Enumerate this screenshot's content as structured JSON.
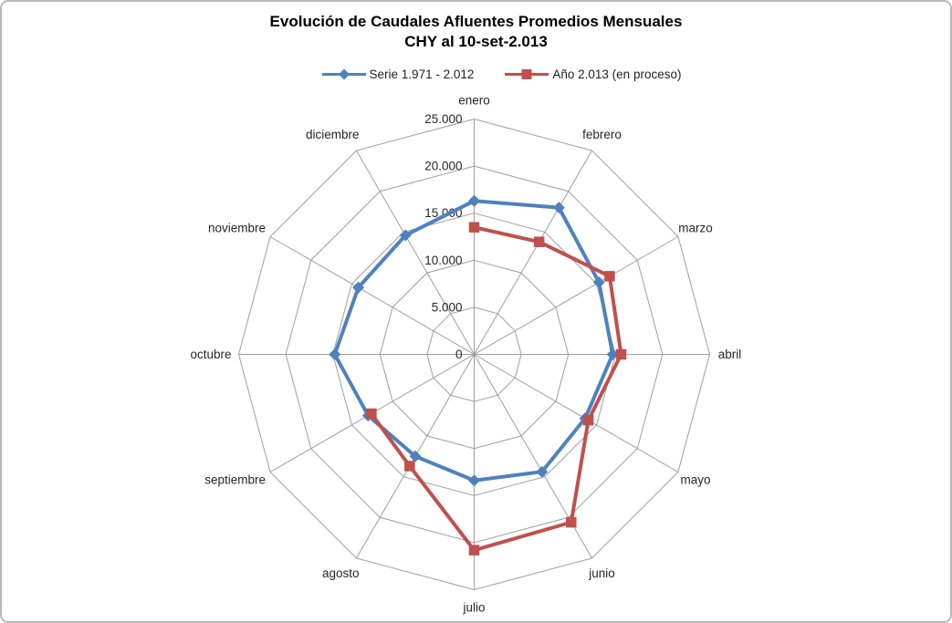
{
  "window": {
    "background": "#ffffff",
    "border_color": "#b9b9b9"
  },
  "title": {
    "line1": "Evolución de Caudales Afluentes Promedios Mensuales",
    "line2": "CHY al 10-set-2.013"
  },
  "legend": {
    "items": [
      {
        "label": "Serie 1.971 - 2.012",
        "color": "#4f81bd",
        "marker": "diamond"
      },
      {
        "label": "Año 2.013 (en proceso)",
        "color": "#c0504d",
        "marker": "square"
      }
    ]
  },
  "chart_data": {
    "type": "radar",
    "title": "Evolución de Caudales Afluentes Promedios Mensuales CHY al 10-set-2.013",
    "legend_position": "top",
    "grid": true,
    "grid_color": "#9e9e9e",
    "categories": [
      "enero",
      "febrero",
      "marzo",
      "abril",
      "mayo",
      "junio",
      "julio",
      "agosto",
      "septiembre",
      "octubre",
      "noviembre",
      "diciembre"
    ],
    "radial_axis": {
      "min": 0,
      "max": 25000,
      "step": 5000,
      "tick_labels": [
        "0",
        "5.000",
        "10.000",
        "15.000",
        "20.000",
        "25.000"
      ]
    },
    "series": [
      {
        "name": "Serie 1.971 - 2.012",
        "color": "#4f81bd",
        "marker": "diamond",
        "closed": true,
        "values": [
          16300,
          18000,
          15300,
          14700,
          13600,
          14400,
          13400,
          12500,
          13000,
          14800,
          14200,
          14600
        ]
      },
      {
        "name": "Año 2.013 (en proceso)",
        "color": "#c0504d",
        "marker": "square",
        "closed": false,
        "values": [
          13500,
          13800,
          16600,
          15600,
          14000,
          20600,
          20800,
          13700,
          12600,
          null,
          null,
          null
        ]
      }
    ]
  }
}
